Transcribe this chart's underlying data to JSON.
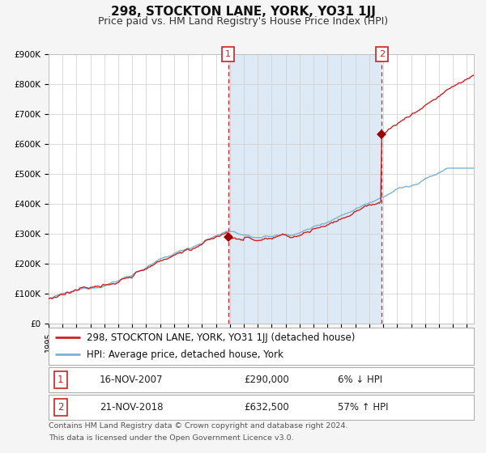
{
  "title": "298, STOCKTON LANE, YORK, YO31 1JJ",
  "subtitle": "Price paid vs. HM Land Registry's House Price Index (HPI)",
  "ylim": [
    0,
    900000
  ],
  "yticks": [
    0,
    100000,
    200000,
    300000,
    400000,
    500000,
    600000,
    700000,
    800000,
    900000
  ],
  "ytick_labels": [
    "£0",
    "£100K",
    "£200K",
    "£300K",
    "£400K",
    "£500K",
    "£600K",
    "£700K",
    "£800K",
    "£900K"
  ],
  "xlim_start": 1995.0,
  "xlim_end": 2025.5,
  "hpi_color": "#7ab3d4",
  "price_color": "#cc2222",
  "background_color": "#f5f5f5",
  "plot_bg_color": "#ffffff",
  "shade_color": "#ddeaf5",
  "sale1_year": 2007.88,
  "sale1_price": 290000,
  "sale2_year": 2018.89,
  "sale2_price": 632500,
  "vline_color": "#cc2222",
  "marker_color": "#990000",
  "legend_label_price": "298, STOCKTON LANE, YORK, YO31 1JJ (detached house)",
  "legend_label_hpi": "HPI: Average price, detached house, York",
  "table_row1_num": "1",
  "table_row1_date": "16-NOV-2007",
  "table_row1_price": "£290,000",
  "table_row1_hpi": "6% ↓ HPI",
  "table_row2_num": "2",
  "table_row2_date": "21-NOV-2018",
  "table_row2_price": "£632,500",
  "table_row2_hpi": "57% ↑ HPI",
  "footnote1": "Contains HM Land Registry data © Crown copyright and database right 2024.",
  "footnote2": "This data is licensed under the Open Government Licence v3.0.",
  "title_fontsize": 11,
  "subtitle_fontsize": 9,
  "tick_fontsize": 7.5,
  "legend_fontsize": 8.5,
  "table_fontsize": 8.5
}
